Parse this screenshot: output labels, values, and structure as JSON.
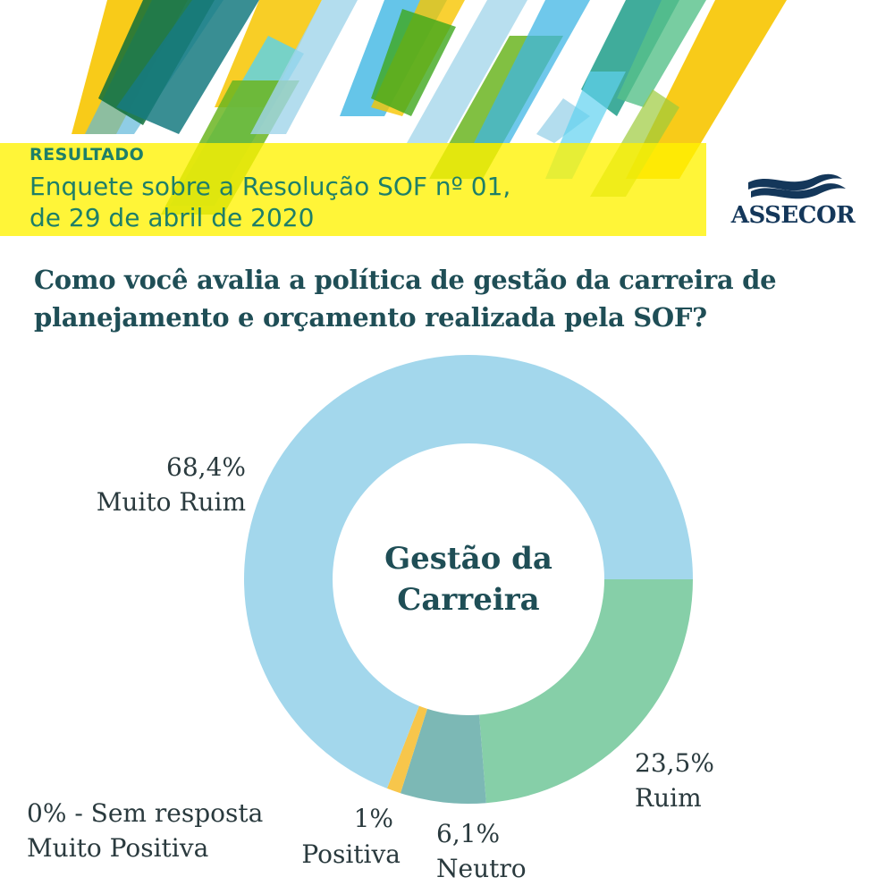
{
  "header": {
    "result_label": "RESULTADO",
    "subtitle_line_1": "Enquete sobre a Resolução SOF nº 01,",
    "subtitle_line_2": "de 29 de abril de 2020",
    "logo_text": "ASSECOR"
  },
  "question": {
    "line_1": "Como você avalia a política de gestão da carreira de",
    "line_2": "planejamento e orçamento realizada pela SOF?"
  },
  "colors": {
    "banner_yellow": "#fff200",
    "title_green": "#1e7f68",
    "question_teal": "#1f4e56",
    "logo_navy": "#14375a"
  },
  "chart_data": {
    "type": "pie",
    "style": "donut",
    "center_title_line_1": "Gestão da",
    "center_title_line_2": "Carreira",
    "slices": [
      {
        "name": "Ruim",
        "value": 23.5,
        "pct_label": "23,5%",
        "color": "#86cfa8"
      },
      {
        "name": "Neutro",
        "value": 6.1,
        "pct_label": "6,1%",
        "color": "#7cb8b5"
      },
      {
        "name": "Positiva",
        "value": 1,
        "pct_label": "1%",
        "color": "#f7c64b"
      },
      {
        "name": "Muito Ruim",
        "value": 68.4,
        "pct_label": "68,4%",
        "color": "#a3d7ec"
      }
    ],
    "extra_label": {
      "line_1": "0% - Sem resposta",
      "line_2": "Muito Positiva"
    }
  }
}
